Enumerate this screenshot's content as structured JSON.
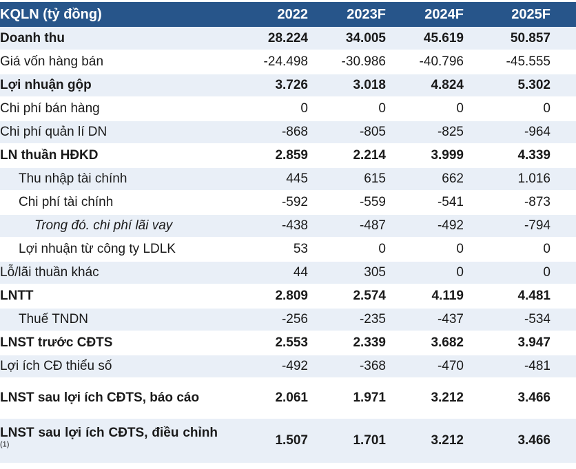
{
  "colors": {
    "header_bg": "#27558A",
    "stripe_bg": "#E9EFF7",
    "header_text": "#FFFFFF",
    "body_text": "#1A1A1A"
  },
  "table": {
    "title_column": "KQLN (tỷ đồng)",
    "year_columns": [
      "2022",
      "2023F",
      "2024F",
      "2025F"
    ],
    "rows": [
      {
        "label": "Doanh thu",
        "values": [
          "28.224",
          "34.005",
          "45.619",
          "50.857"
        ],
        "bold": true,
        "stripe": true,
        "indent": 0
      },
      {
        "label": "Giá vốn hàng bán",
        "values": [
          "-24.498",
          "-30.986",
          "-40.796",
          "-45.555"
        ],
        "bold": false,
        "stripe": false,
        "indent": 0
      },
      {
        "label": "Lợi nhuận gộp",
        "values": [
          "3.726",
          "3.018",
          "4.824",
          "5.302"
        ],
        "bold": true,
        "stripe": true,
        "indent": 0
      },
      {
        "label": "Chi phí bán hàng",
        "values": [
          "0",
          "0",
          "0",
          "0"
        ],
        "bold": false,
        "stripe": false,
        "indent": 0
      },
      {
        "label": "Chi phí quản lí DN",
        "values": [
          "-868",
          "-805",
          "-825",
          "-964"
        ],
        "bold": false,
        "stripe": true,
        "indent": 0
      },
      {
        "label": "LN thuần HĐKD",
        "values": [
          "2.859",
          "2.214",
          "3.999",
          "4.339"
        ],
        "bold": true,
        "stripe": false,
        "indent": 0
      },
      {
        "label": "Thu nhập tài chính",
        "values": [
          "445",
          "615",
          "662",
          "1.016"
        ],
        "bold": false,
        "stripe": true,
        "indent": 1
      },
      {
        "label": "Chi phí tài chính",
        "values": [
          "-592",
          "-559",
          "-541",
          "-873"
        ],
        "bold": false,
        "stripe": false,
        "indent": 1
      },
      {
        "label": "Trong đó. chi phí lãi vay",
        "values": [
          "-438",
          "-487",
          "-492",
          "-794"
        ],
        "bold": false,
        "stripe": true,
        "indent": 2
      },
      {
        "label": "Lợi nhuận từ công ty LDLK",
        "values": [
          "53",
          "0",
          "0",
          "0"
        ],
        "bold": false,
        "stripe": false,
        "indent": 1
      },
      {
        "label": "Lỗ/lãi thuần khác",
        "values": [
          "44",
          "305",
          "0",
          "0"
        ],
        "bold": false,
        "stripe": true,
        "indent": 0
      },
      {
        "label": "LNTT",
        "values": [
          "2.809",
          "2.574",
          "4.119",
          "4.481"
        ],
        "bold": true,
        "stripe": false,
        "indent": 0
      },
      {
        "label": "Thuế TNDN",
        "values": [
          "-256",
          "-235",
          "-437",
          "-534"
        ],
        "bold": false,
        "stripe": true,
        "indent": 1
      },
      {
        "label": "LNST trước CĐTS",
        "values": [
          "2.553",
          "2.339",
          "3.682",
          "3.947"
        ],
        "bold": true,
        "stripe": false,
        "indent": 0
      },
      {
        "label": "Lợi ích CĐ thiểu số",
        "values": [
          "-492",
          "-368",
          "-470",
          "-481"
        ],
        "bold": false,
        "stripe": true,
        "indent": 0
      },
      {
        "label": "LNST sau lợi ích CĐTS, báo cáo",
        "values": [
          "2.061",
          "1.971",
          "3.212",
          "3.466"
        ],
        "bold": true,
        "stripe": false,
        "indent": 0,
        "tall": "h58"
      },
      {
        "label": "LNST sau lợi ích CĐTS, điều chỉnh",
        "sup": "(1)",
        "values": [
          "1.507",
          "1.701",
          "3.212",
          "3.466"
        ],
        "bold": true,
        "stripe": true,
        "indent": 0,
        "tall": "h66"
      }
    ]
  }
}
